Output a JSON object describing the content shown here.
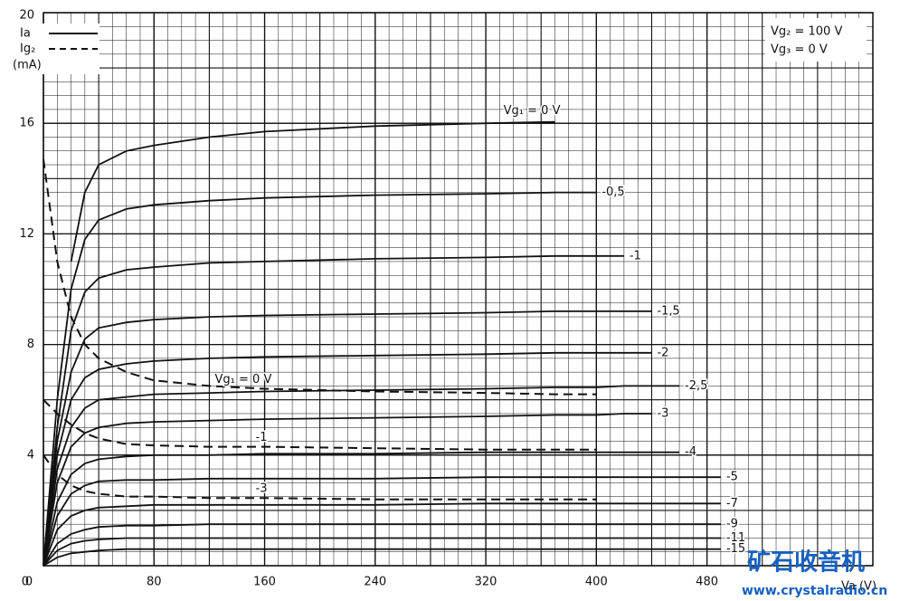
{
  "chart_data": {
    "type": "line",
    "title": "Vg₂ = 100 V",
    "subtitle": "Vg₃ = 0 V",
    "xlabel": "Va (V)",
    "y_unit": "(mA)",
    "legend": [
      {
        "name": "Ia",
        "dash": false
      },
      {
        "name": "Ig₂",
        "dash": true
      }
    ],
    "xlim": [
      0,
      600
    ],
    "ylim": [
      0,
      20
    ],
    "xticks": [
      0,
      80,
      160,
      240,
      320,
      400,
      480
    ],
    "yticks": [
      0,
      4,
      8,
      12,
      16,
      20
    ],
    "grid": true,
    "color": "#111111",
    "x": [
      0,
      10,
      20,
      30,
      40,
      60,
      80,
      120,
      160,
      240,
      320,
      370,
      400,
      420,
      440,
      460,
      490
    ],
    "series": [
      {
        "name": "Vg₁ = 0 V",
        "dash": false,
        "values": [
          null,
          null,
          11,
          13.5,
          14.5,
          15.0,
          15.2,
          15.5,
          15.7,
          15.9,
          16.0,
          16.05,
          null,
          null,
          null,
          null,
          null
        ]
      },
      {
        "name": "-0,5",
        "dash": false,
        "values": [
          0,
          6,
          10,
          11.8,
          12.5,
          12.9,
          13.05,
          13.2,
          13.3,
          13.4,
          13.45,
          13.5,
          13.5,
          null,
          null,
          null,
          null
        ]
      },
      {
        "name": "-1",
        "dash": false,
        "values": [
          0,
          5,
          8.5,
          9.9,
          10.4,
          10.7,
          10.8,
          10.95,
          11.0,
          11.1,
          11.15,
          11.2,
          11.2,
          11.2,
          null,
          null,
          null
        ]
      },
      {
        "name": "-1,5",
        "dash": false,
        "values": [
          0,
          4.5,
          7,
          8.2,
          8.6,
          8.8,
          8.9,
          9.0,
          9.05,
          9.1,
          9.15,
          9.2,
          9.2,
          9.2,
          9.2,
          null,
          null
        ]
      },
      {
        "name": "-2",
        "dash": false,
        "values": [
          0,
          4,
          6,
          6.8,
          7.1,
          7.3,
          7.4,
          7.5,
          7.55,
          7.6,
          7.65,
          7.7,
          7.7,
          7.7,
          7.7,
          null,
          null
        ]
      },
      {
        "name": "-2,5",
        "dash": false,
        "values": [
          0,
          3.5,
          5,
          5.7,
          6.0,
          6.1,
          6.2,
          6.25,
          6.3,
          6.35,
          6.4,
          6.45,
          6.45,
          6.5,
          6.5,
          6.5,
          null
        ]
      },
      {
        "name": "-3",
        "dash": false,
        "values": [
          0,
          3,
          4.3,
          4.8,
          5.0,
          5.15,
          5.2,
          5.25,
          5.3,
          5.35,
          5.4,
          5.45,
          5.45,
          5.5,
          5.5,
          null,
          null
        ]
      },
      {
        "name": "-4",
        "dash": false,
        "values": [
          0,
          2.3,
          3.3,
          3.7,
          3.85,
          3.95,
          4.0,
          4.0,
          4.05,
          4.05,
          4.1,
          4.1,
          4.1,
          4.1,
          4.1,
          4.1,
          null
        ]
      },
      {
        "name": "-5",
        "dash": false,
        "values": [
          0,
          1.8,
          2.6,
          2.9,
          3.05,
          3.1,
          3.1,
          3.15,
          3.15,
          3.15,
          3.2,
          3.2,
          3.2,
          3.2,
          3.2,
          3.2,
          3.2
        ]
      },
      {
        "name": "-7",
        "dash": false,
        "values": [
          0,
          1.3,
          1.8,
          2.0,
          2.1,
          2.15,
          2.2,
          2.2,
          2.2,
          2.2,
          2.25,
          2.25,
          2.25,
          2.25,
          2.25,
          2.25,
          2.25
        ]
      },
      {
        "name": "-9",
        "dash": false,
        "values": [
          0,
          0.8,
          1.15,
          1.3,
          1.4,
          1.45,
          1.45,
          1.5,
          1.5,
          1.5,
          1.5,
          1.5,
          1.5,
          1.5,
          1.5,
          1.5,
          1.5
        ]
      },
      {
        "name": "-11",
        "dash": false,
        "values": [
          0,
          0.55,
          0.8,
          0.9,
          0.95,
          1.0,
          1.0,
          1.0,
          1.0,
          1.0,
          1.0,
          1.0,
          1.0,
          1.0,
          1.0,
          1.0,
          1.0
        ]
      },
      {
        "name": "-15",
        "dash": false,
        "values": [
          0,
          0.3,
          0.45,
          0.5,
          0.55,
          0.6,
          0.6,
          0.6,
          0.6,
          0.6,
          0.6,
          0.6,
          0.6,
          0.6,
          0.6,
          0.6,
          0.6
        ]
      },
      {
        "name": "Vg₁ = 0 V",
        "dash": true,
        "values": [
          14.7,
          11,
          9,
          8,
          7.5,
          7,
          6.7,
          6.5,
          6.4,
          6.3,
          6.25,
          6.2,
          6.2,
          null,
          null,
          null,
          null
        ]
      },
      {
        "name": "-1",
        "dash": true,
        "values": [
          6,
          5.5,
          5.1,
          4.8,
          4.6,
          4.4,
          4.35,
          4.3,
          4.3,
          4.25,
          4.2,
          4.2,
          4.2,
          null,
          null,
          null,
          null
        ]
      },
      {
        "name": "-3",
        "dash": true,
        "values": [
          4,
          3.3,
          2.9,
          2.7,
          2.6,
          2.5,
          2.5,
          2.45,
          2.45,
          2.4,
          2.4,
          2.4,
          2.4,
          null,
          null,
          null,
          null
        ]
      }
    ]
  },
  "watermark": {
    "title": "矿石收音机",
    "url": "www.crystalradio.cn"
  }
}
